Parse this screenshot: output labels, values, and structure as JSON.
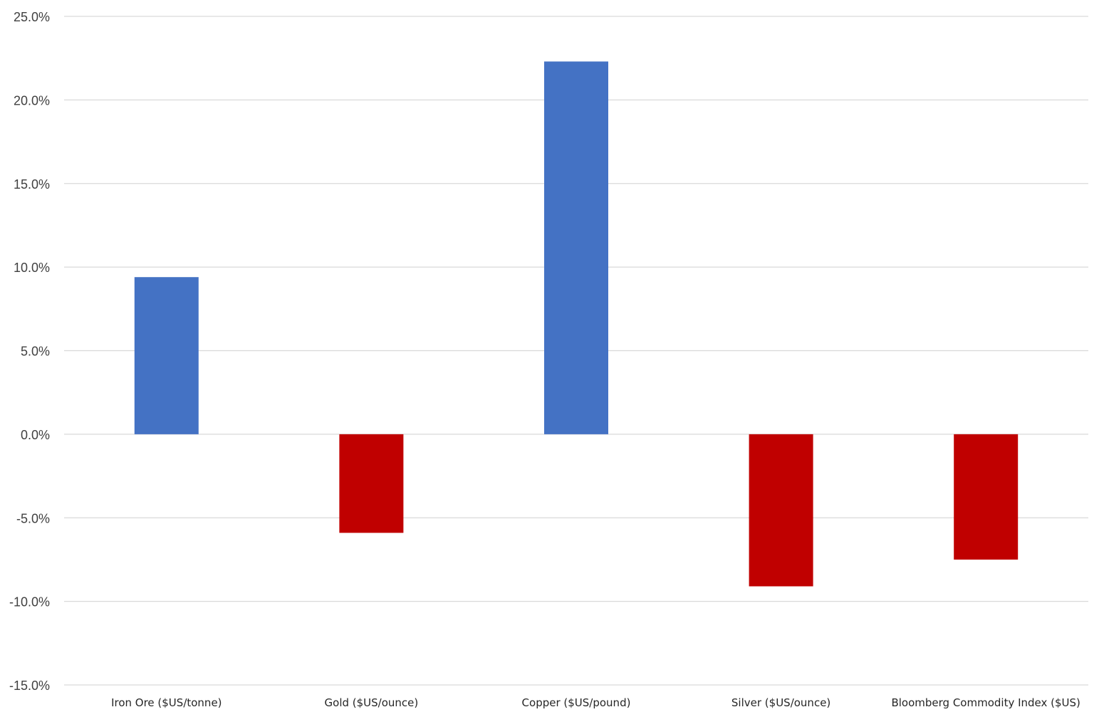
{
  "chart_data": {
    "type": "bar",
    "title": "",
    "xlabel": "",
    "ylabel": "",
    "categories": [
      "Iron Ore ($US/tonne)",
      "Gold ($US/ounce)",
      "Copper ($US/pound)",
      "Silver ($US/ounce)",
      "Bloomberg Commodity Index ($US)"
    ],
    "values": [
      9.4,
      -5.9,
      22.3,
      -9.1,
      -7.5
    ],
    "ylim": [
      -15,
      25
    ],
    "yticks": [
      25,
      20,
      15,
      10,
      5,
      0,
      -5,
      -10,
      -15
    ],
    "ytick_labels": [
      "25.0%",
      "20.0%",
      "15.0%",
      "10.0%",
      "5.0%",
      "0.0%",
      "-5.0%",
      "-10.0%",
      "-15.0%"
    ],
    "grid": true,
    "colors": {
      "positive": "#4472C4",
      "negative": "#C00000",
      "grid": "#D9D9D9"
    }
  }
}
